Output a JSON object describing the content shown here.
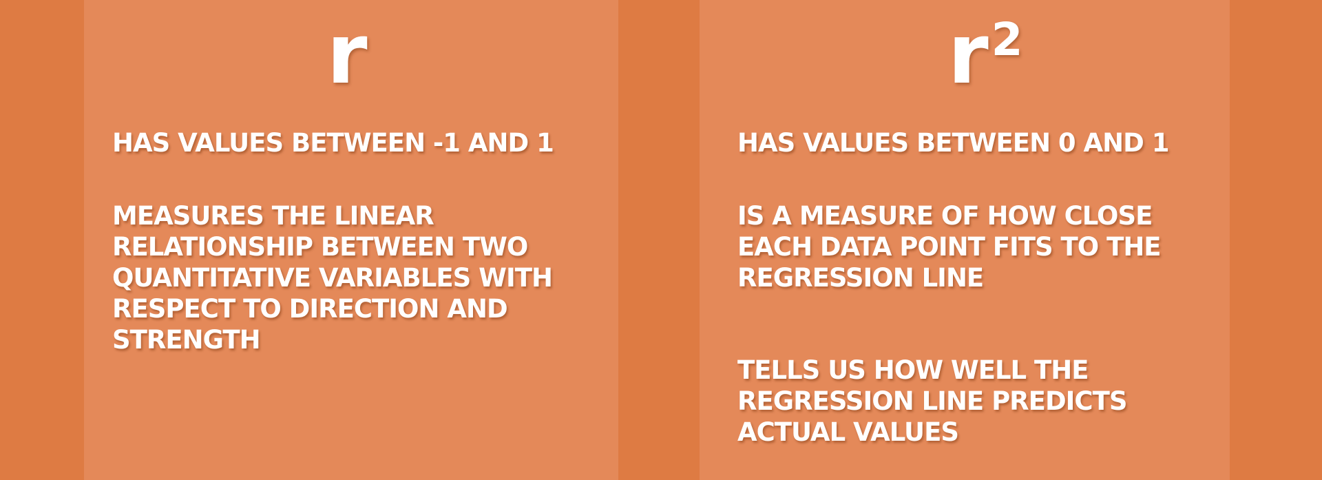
{
  "colors": {
    "background": "#de7b43",
    "panel": "#e48959",
    "text": "#ffffff"
  },
  "left_panel": {
    "symbol": "r",
    "statements": [
      "HAS VALUES BETWEEN -1 AND 1",
      "MEASURES THE LINEAR\nRELATIONSHIP BETWEEN TWO\nQUANTITATIVE VARIABLES WITH\nRESPECT TO DIRECTION AND\nSTRENGTH"
    ]
  },
  "right_panel": {
    "symbol": "r",
    "symbol_exponent": "2",
    "statements": [
      "HAS VALUES BETWEEN 0 AND 1",
      "IS A MEASURE OF HOW CLOSE\nEACH DATA POINT FITS TO THE\nREGRESSION LINE",
      "TELLS US HOW WELL THE\nREGRESSION LINE PREDICTS\nACTUAL VALUES"
    ]
  }
}
